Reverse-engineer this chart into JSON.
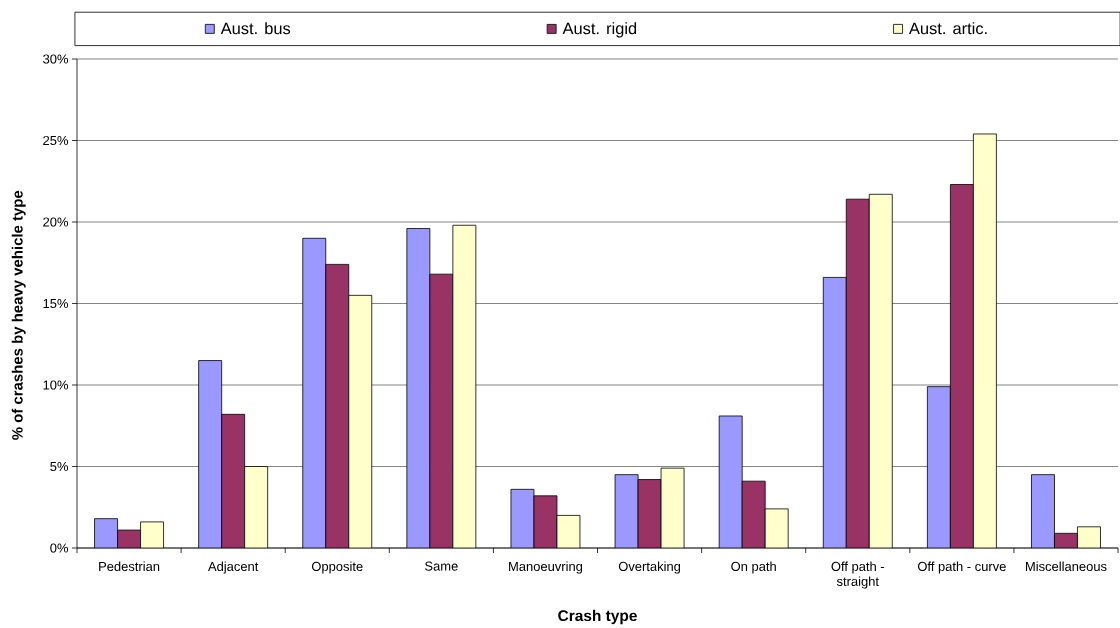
{
  "chart_data": {
    "type": "bar",
    "xlabel": "Crash type",
    "ylabel": "% of crashes by heavy vehicle type",
    "categories": [
      "Pedestrian",
      "Adjacent",
      "Opposite",
      "Same",
      "Manoeuvring",
      "Overtaking",
      "On path",
      "Off path - straight",
      "Off path - curve",
      "Miscellaneous"
    ],
    "series": [
      {
        "name": "Aust. bus",
        "color": "#9999ff",
        "values": [
          1.8,
          11.5,
          19.0,
          19.6,
          3.6,
          4.5,
          8.1,
          16.6,
          9.9,
          4.5
        ]
      },
      {
        "name": "Aust. rigid",
        "color": "#993366",
        "values": [
          1.1,
          8.2,
          17.4,
          16.8,
          3.2,
          4.2,
          4.1,
          21.4,
          22.3,
          0.9
        ]
      },
      {
        "name": "Aust. artic.",
        "color": "#ffffcc",
        "values": [
          1.6,
          5.0,
          15.5,
          19.8,
          2.0,
          4.9,
          2.4,
          21.7,
          25.4,
          1.3
        ]
      }
    ],
    "ylim": [
      0,
      30
    ],
    "yticks": [
      {
        "value": 0,
        "label": "0%"
      },
      {
        "value": 5,
        "label": "5%"
      },
      {
        "value": 10,
        "label": "10%"
      },
      {
        "value": 15,
        "label": "15%"
      },
      {
        "value": 20,
        "label": "20%"
      },
      {
        "value": 25,
        "label": "25%"
      },
      {
        "value": 30,
        "label": "30%"
      }
    ],
    "grid": "y",
    "legend": "top"
  }
}
